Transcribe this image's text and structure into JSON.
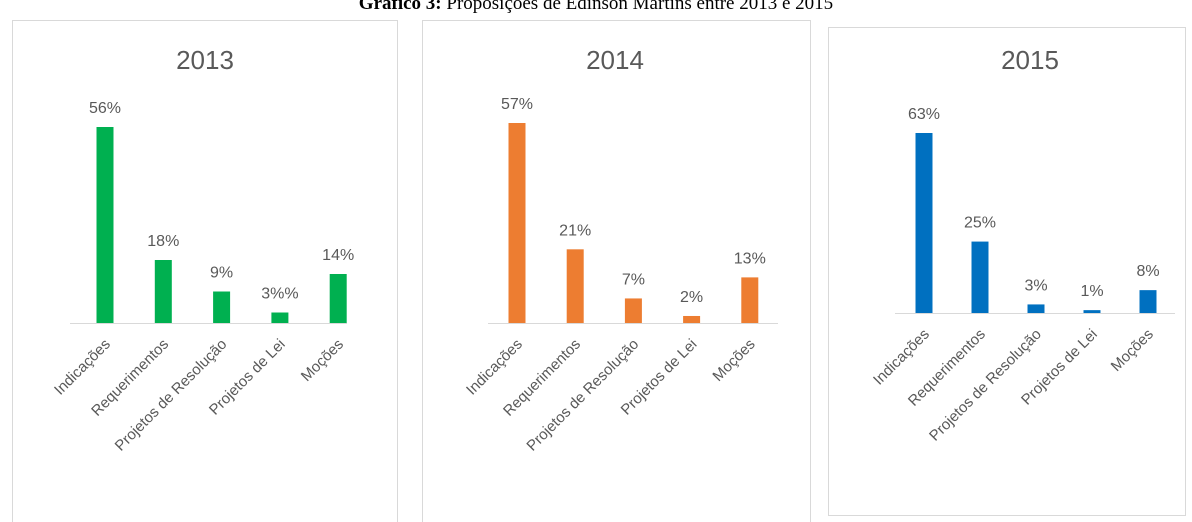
{
  "figure": {
    "label": "Gráfico 3:",
    "title": "Proposições de Edinson Martins entre 2013 e 2015"
  },
  "chart_data": [
    {
      "type": "bar",
      "title": "2013",
      "categories": [
        "Indicações",
        "Requerimentos",
        "Projetos de Resolução",
        "Projetos de Lei",
        "Moções"
      ],
      "values": [
        56,
        18,
        9,
        3,
        14
      ],
      "value_labels": [
        "56%",
        "18%",
        "9%",
        "3%%",
        "14%"
      ],
      "color": "#00b050"
    },
    {
      "type": "bar",
      "title": "2014",
      "categories": [
        "Indicações",
        "Requerimentos",
        "Projetos de Resolução",
        "Projetos de Lei",
        "Moções"
      ],
      "values": [
        57,
        21,
        7,
        2,
        13
      ],
      "value_labels": [
        "57%",
        "21%",
        "7%",
        "2%",
        "13%"
      ],
      "color": "#ed7d31"
    },
    {
      "type": "bar",
      "title": "2015",
      "categories": [
        "Indicações",
        "Requerimentos",
        "Projetos de Resolução",
        "Projetos de Lei",
        "Moções"
      ],
      "values": [
        63,
        25,
        3,
        1,
        8
      ],
      "value_labels": [
        "63%",
        "25%",
        "3%",
        "1%",
        "8%"
      ],
      "color": "#0070c0"
    }
  ]
}
